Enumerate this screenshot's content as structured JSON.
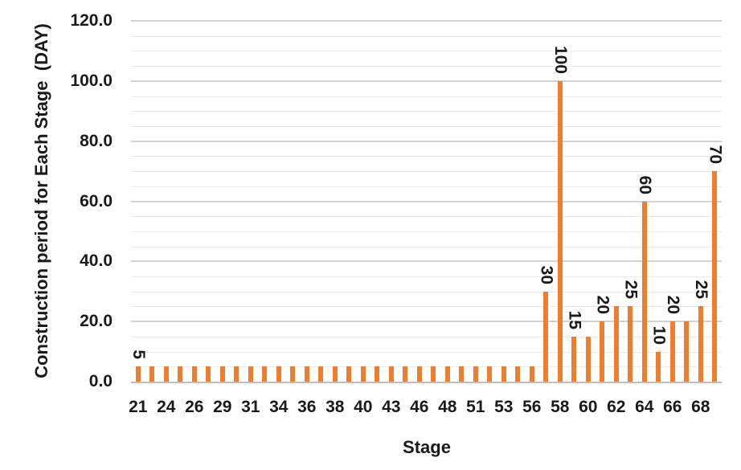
{
  "chart_data": {
    "type": "bar",
    "title": "",
    "xlabel": "Stage",
    "ylabel": "Construction period for Each Stage  (DAY)",
    "ylim": [
      0,
      120
    ],
    "y_major_unit": 20,
    "y_minor_unit": 5,
    "grid": true,
    "legend": false,
    "y_tick_labels": [
      "0.0",
      "20.0",
      "40.0",
      "60.0",
      "80.0",
      "100.0",
      "120.0"
    ],
    "categories": [
      "21",
      "",
      "24",
      "",
      "26",
      "",
      "29",
      "",
      "31",
      "",
      "34",
      "",
      "36",
      "",
      "38",
      "",
      "40",
      "",
      "43",
      "",
      "46",
      "",
      "48",
      "",
      "51",
      "",
      "53",
      "",
      "56",
      "",
      "58",
      "",
      "60",
      "",
      "62",
      "",
      "64",
      "",
      "66",
      "",
      "68",
      ""
    ],
    "values": [
      5,
      5,
      5,
      5,
      5,
      5,
      5,
      5,
      5,
      5,
      5,
      5,
      5,
      5,
      5,
      5,
      5,
      5,
      5,
      5,
      5,
      5,
      5,
      5,
      5,
      5,
      5,
      5,
      5,
      30,
      100,
      15,
      15,
      20,
      25,
      25,
      60,
      10,
      20,
      20,
      25,
      70
    ],
    "data_labels": [
      {
        "index": 0,
        "text": "5"
      },
      {
        "index": 29,
        "text": "30"
      },
      {
        "index": 30,
        "text": "100"
      },
      {
        "index": 31,
        "text": "15"
      },
      {
        "index": 33,
        "text": "20"
      },
      {
        "index": 35,
        "text": "25"
      },
      {
        "index": 36,
        "text": "60"
      },
      {
        "index": 37,
        "text": "10"
      },
      {
        "index": 38,
        "text": "20"
      },
      {
        "index": 40,
        "text": "25"
      },
      {
        "index": 41,
        "text": "70"
      }
    ]
  },
  "colors": {
    "bar": "#ED7D31",
    "text": "#1a1a1a",
    "gridline_major": "#d2d2d2",
    "gridline_minor": "#ebebeb",
    "axis_line": "#bdbdbd",
    "background": "#ffffff"
  }
}
